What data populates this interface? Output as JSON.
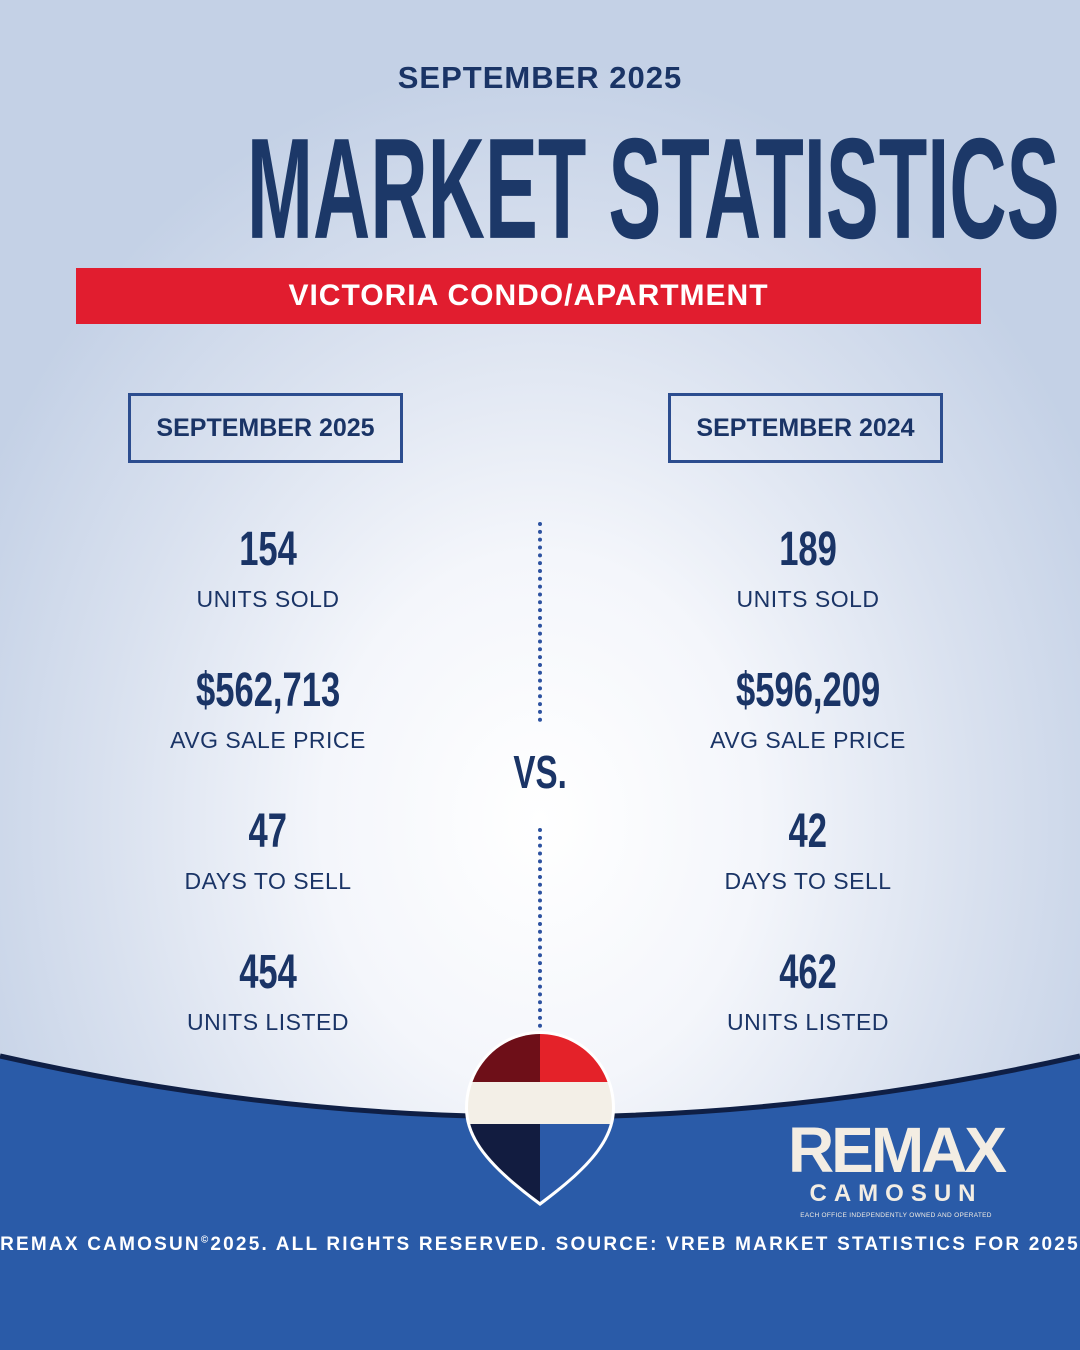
{
  "header": {
    "date": "SEPTEMBER 2025",
    "title": "MARKET STATISTICS",
    "banner": "VICTORIA CONDO/APARTMENT"
  },
  "comparison": {
    "left": {
      "period": "SEPTEMBER 2025",
      "stats": [
        {
          "value": "154",
          "label": "UNITS SOLD"
        },
        {
          "value": "$562,713",
          "label": "AVG SALE PRICE"
        },
        {
          "value": "47",
          "label": "DAYS TO SELL"
        },
        {
          "value": "454",
          "label": "UNITS LISTED"
        }
      ]
    },
    "vs_label": "VS.",
    "right": {
      "period": "SEPTEMBER 2024",
      "stats": [
        {
          "value": "189",
          "label": "UNITS SOLD"
        },
        {
          "value": "$596,209",
          "label": "AVG SALE PRICE"
        },
        {
          "value": "42",
          "label": "DAYS TO SELL"
        },
        {
          "value": "462",
          "label": "UNITS LISTED"
        }
      ]
    }
  },
  "brand": {
    "wordmark": "REMAX",
    "office": "CAMOSUN",
    "tagline": "EACH OFFICE INDEPENDENTLY OWNED AND OPERATED",
    "icon": "balloon-logo-icon"
  },
  "footer": {
    "text_a": "REMAX CAMOSUN",
    "symbol": "©",
    "text_b": "2025. ALL RIGHTS RESERVED. SOURCE: VREB MARKET STATISTICS FOR 2025"
  },
  "colors": {
    "navy": "#1a3466",
    "red": "#e11d2f",
    "blue": "#2a5ba8"
  }
}
